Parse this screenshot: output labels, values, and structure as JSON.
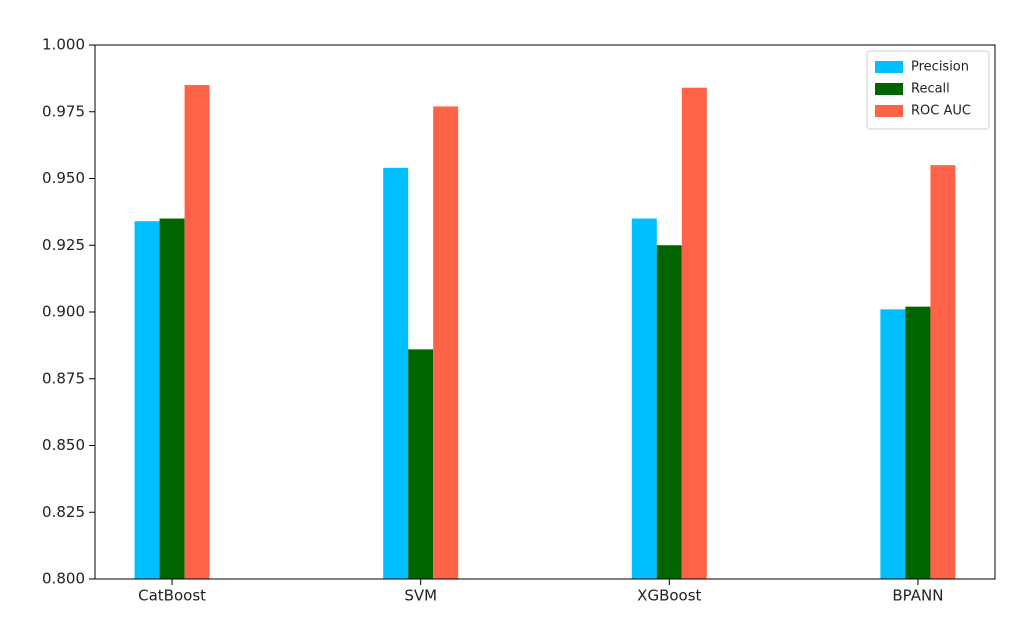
{
  "chart_data": {
    "type": "bar",
    "categories": [
      "CatBoost",
      "SVM",
      "XGBoost",
      "BPANN"
    ],
    "series": [
      {
        "name": "Precision",
        "color": "#00bfff",
        "values": [
          0.934,
          0.954,
          0.935,
          0.901
        ]
      },
      {
        "name": "Recall",
        "color": "#006400",
        "values": [
          0.935,
          0.886,
          0.925,
          0.902
        ]
      },
      {
        "name": "ROC AUC",
        "color": "#ff6347",
        "values": [
          0.985,
          0.977,
          0.984,
          0.955
        ]
      }
    ],
    "ylim": [
      0.8,
      1.0
    ],
    "yticks": [
      {
        "value": 0.8,
        "label": "0.800"
      },
      0.825,
      {
        "value": 0.85,
        "label": "0.850"
      },
      0.875,
      {
        "value": 0.9,
        "label": "0.900"
      },
      0.925,
      {
        "value": 0.95,
        "label": "0.950"
      },
      0.975,
      {
        "value": 1.0,
        "label": "1.000"
      }
    ],
    "grid": false,
    "legend": "upper right"
  }
}
